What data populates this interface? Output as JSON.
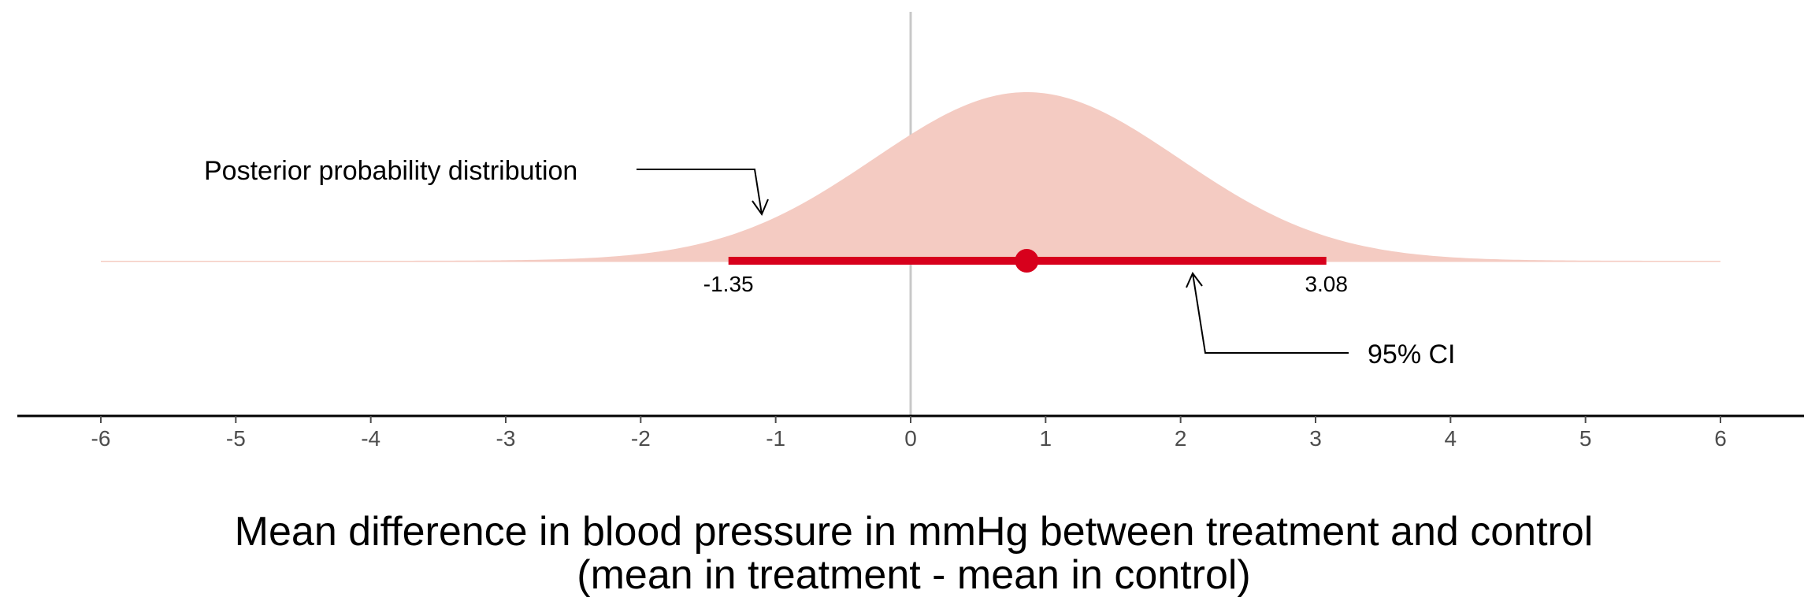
{
  "chart_data": {
    "type": "area",
    "title": "",
    "xlabel": "Mean difference in blood pressure in mmHg between treatment and control",
    "xlabel_line2": "(mean in treatment - mean in control)",
    "ylabel": "",
    "xlim": [
      -6,
      6
    ],
    "x_ticks": [
      -6,
      -5,
      -4,
      -3,
      -2,
      -1,
      0,
      1,
      2,
      3,
      4,
      5,
      6
    ],
    "x_tick_labels": [
      "-6",
      "-5",
      "-4",
      "-3",
      "-2",
      "-1",
      "0",
      "1",
      "2",
      "3",
      "4",
      "5",
      "6"
    ],
    "reference_line_x": 0,
    "grid": false,
    "legend": "none",
    "posterior": {
      "distribution": "normal",
      "mean": 0.86,
      "sd": 1.13,
      "color": "#f4cbc2"
    },
    "point_estimate": 0.86,
    "ci_95": {
      "lower": -1.35,
      "upper": 3.08
    },
    "ci_labels": {
      "lower": "-1.35",
      "upper": "3.08"
    },
    "ci_color": "#d7001c",
    "annotations": {
      "posterior_label": "Posterior probability distribution",
      "ci_label": "95% CI"
    }
  }
}
